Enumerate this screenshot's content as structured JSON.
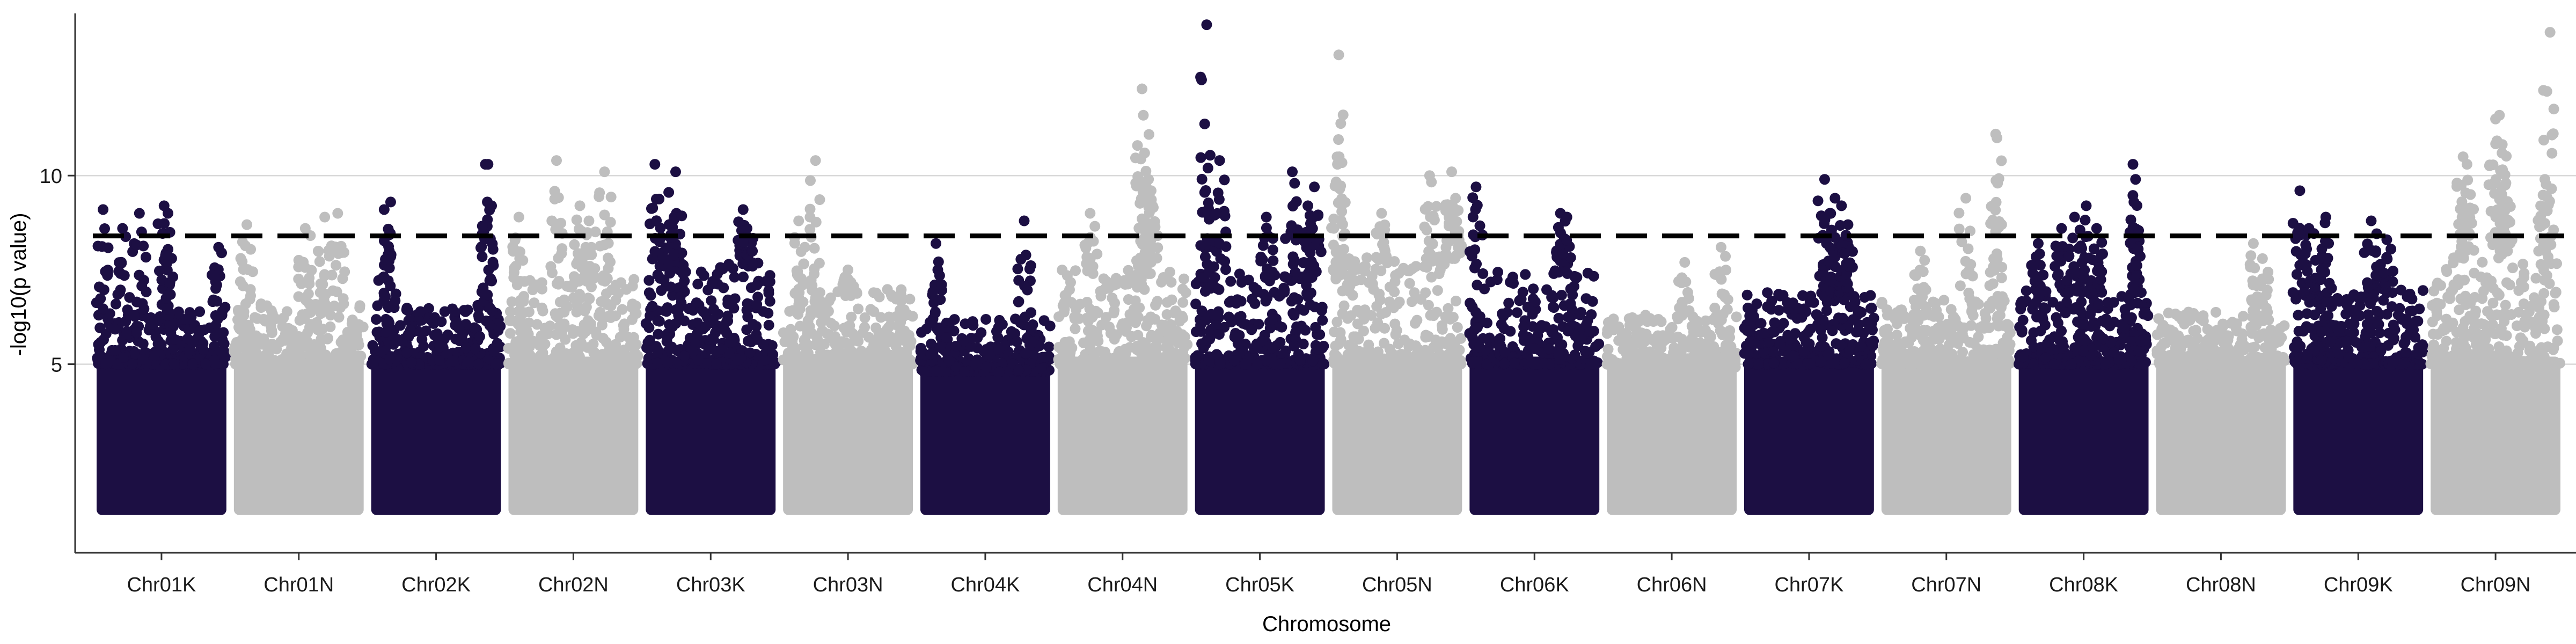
{
  "chart_data": {
    "type": "scatter",
    "title": "",
    "xlabel": "Chromosome",
    "ylabel": "-log10(p value)",
    "ylim": [
      0,
      14.3
    ],
    "y_ticks": [
      5,
      10
    ],
    "threshold": 8.4,
    "threshold_style": "dashed",
    "grid": "horizontal major",
    "colors": {
      "dark": "#1c0f43",
      "light": "#bebebe",
      "threshold": "#000000",
      "grid": "#d9d9d9"
    },
    "categories": [
      "Chr01K",
      "Chr01N",
      "Chr02K",
      "Chr02N",
      "Chr03K",
      "Chr03N",
      "Chr04K",
      "Chr04N",
      "Chr05K",
      "Chr05N",
      "Chr06K",
      "Chr06N",
      "Chr07K",
      "Chr07N",
      "Chr08K",
      "Chr08N",
      "Chr09K",
      "Chr09N"
    ],
    "series": [
      {
        "chromosome": "Chr01K",
        "color": "dark",
        "base_max": 6.3,
        "peaks": [
          [
            0.05,
            9.1
          ],
          [
            0.2,
            8.6
          ],
          [
            0.33,
            9.0
          ],
          [
            0.52,
            9.2
          ],
          [
            0.55,
            9.0
          ],
          [
            0.94,
            8.1
          ]
        ]
      },
      {
        "chromosome": "Chr01N",
        "color": "light",
        "base_max": 6.6,
        "peaks": [
          [
            0.1,
            8.7
          ],
          [
            0.55,
            8.6
          ],
          [
            0.7,
            8.9
          ],
          [
            0.8,
            9.0
          ]
        ]
      },
      {
        "chromosome": "Chr02K",
        "color": "dark",
        "base_max": 6.5,
        "peaks": [
          [
            0.1,
            9.1
          ],
          [
            0.15,
            9.3
          ],
          [
            0.88,
            10.3
          ],
          [
            0.9,
            10.3
          ]
        ]
      },
      {
        "chromosome": "Chr02N",
        "color": "light",
        "base_max": 7.2,
        "peaks": [
          [
            0.08,
            8.9
          ],
          [
            0.37,
            10.4
          ],
          [
            0.55,
            9.2
          ],
          [
            0.74,
            10.1
          ],
          [
            0.62,
            8.8
          ]
        ]
      },
      {
        "chromosome": "Chr03K",
        "color": "dark",
        "base_max": 7.6,
        "peaks": [
          [
            0.07,
            10.3
          ],
          [
            0.23,
            10.1
          ],
          [
            0.18,
            8.7
          ],
          [
            0.75,
            9.1
          ],
          [
            0.78,
            8.6
          ]
        ]
      },
      {
        "chromosome": "Chr03N",
        "color": "light",
        "base_max": 6.9,
        "peaks": [
          [
            0.12,
            8.8
          ],
          [
            0.25,
            10.4
          ],
          [
            0.5,
            7.5
          ]
        ]
      },
      {
        "chromosome": "Chr04K",
        "color": "dark",
        "base_max": 6.1,
        "peaks": [
          [
            0.12,
            8.2
          ],
          [
            0.8,
            8.8
          ]
        ]
      },
      {
        "chromosome": "Chr04N",
        "color": "light",
        "base_max": 7.4,
        "peaks": [
          [
            0.25,
            9.0
          ],
          [
            0.65,
            12.3
          ],
          [
            0.66,
            11.6
          ],
          [
            0.67,
            10.6
          ],
          [
            0.7,
            9.9
          ],
          [
            0.72,
            9.6
          ]
        ]
      },
      {
        "chromosome": "Chr05K",
        "color": "dark",
        "base_max": 7.3,
        "peaks": [
          [
            0.09,
            14.0
          ],
          [
            0.1,
            10.2
          ],
          [
            0.19,
            10.4
          ],
          [
            0.55,
            8.9
          ],
          [
            0.75,
            10.1
          ],
          [
            0.87,
            9.2
          ],
          [
            0.92,
            9.7
          ]
        ]
      },
      {
        "chromosome": "Chr05N",
        "color": "light",
        "base_max": 7.8,
        "peaks": [
          [
            0.05,
            13.2
          ],
          [
            0.04,
            10.3
          ],
          [
            0.38,
            9.0
          ],
          [
            0.75,
            10.0
          ],
          [
            0.92,
            10.1
          ],
          [
            0.95,
            9.4
          ]
        ]
      },
      {
        "chromosome": "Chr06K",
        "color": "dark",
        "base_max": 7.4,
        "peaks": [
          [
            0.05,
            9.7
          ],
          [
            0.7,
            9.0
          ],
          [
            0.75,
            8.9
          ]
        ]
      },
      {
        "chromosome": "Chr06N",
        "color": "light",
        "base_max": 6.2,
        "peaks": [
          [
            0.6,
            7.7
          ],
          [
            0.88,
            8.1
          ]
        ]
      },
      {
        "chromosome": "Chr07K",
        "color": "dark",
        "base_max": 6.8,
        "peaks": [
          [
            0.62,
            9.9
          ],
          [
            0.66,
            9.0
          ],
          [
            0.7,
            9.4
          ],
          [
            0.75,
            9.2
          ],
          [
            0.8,
            8.7
          ]
        ]
      },
      {
        "chromosome": "Chr07N",
        "color": "light",
        "base_max": 6.6,
        "peaks": [
          [
            0.3,
            8.0
          ],
          [
            0.65,
            9.4
          ],
          [
            0.88,
            11.1
          ],
          [
            0.89,
            11.0
          ]
        ]
      },
      {
        "chromosome": "Chr08K",
        "color": "dark",
        "base_max": 6.9,
        "peaks": [
          [
            0.15,
            8.2
          ],
          [
            0.33,
            8.6
          ],
          [
            0.43,
            8.9
          ],
          [
            0.52,
            9.2
          ],
          [
            0.6,
            8.6
          ],
          [
            0.88,
            10.3
          ],
          [
            0.9,
            9.9
          ]
        ]
      },
      {
        "chromosome": "Chr08N",
        "color": "light",
        "base_max": 6.3,
        "peaks": [
          [
            0.75,
            8.2
          ],
          [
            0.82,
            7.8
          ]
        ]
      },
      {
        "chromosome": "Chr09K",
        "color": "dark",
        "base_max": 6.9,
        "peaks": [
          [
            0.05,
            9.6
          ],
          [
            0.12,
            8.6
          ],
          [
            0.25,
            8.9
          ],
          [
            0.6,
            8.8
          ],
          [
            0.72,
            8.3
          ]
        ]
      },
      {
        "chromosome": "Chr09N",
        "color": "light",
        "base_max": 8.0,
        "peaks": [
          [
            0.25,
            10.5
          ],
          [
            0.28,
            10.3
          ],
          [
            0.5,
            11.5
          ],
          [
            0.53,
            11.6
          ],
          [
            0.55,
            10.6
          ],
          [
            0.58,
            9.8
          ],
          [
            0.92,
            13.8
          ],
          [
            0.88,
            9.9
          ]
        ]
      }
    ]
  }
}
